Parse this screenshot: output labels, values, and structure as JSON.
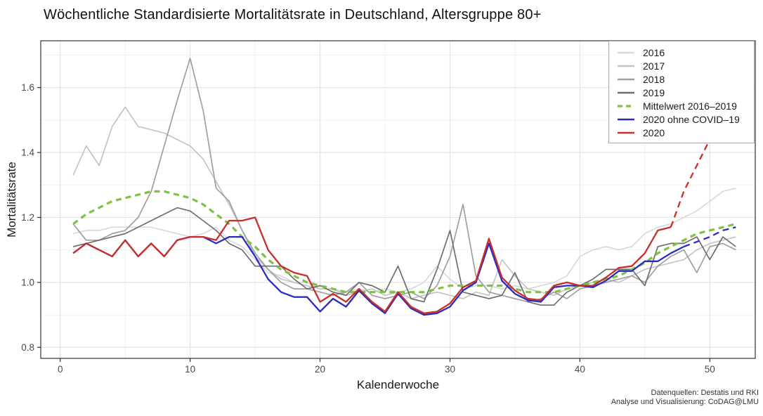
{
  "title": "Wöchentliche Standardisierte Mortalitätsrate in Deutschland, Altersgruppe 80+",
  "footer": {
    "line1": "Datenquellen: Destatis und RKI",
    "line2": "Analyse und Visualisierung: CoDAG@LMU"
  },
  "chart_data": {
    "type": "line",
    "title": "Wöchentliche Standardisierte Mortalitätsrate in Deutschland, Altersgruppe 80+",
    "xlabel": "Kalenderwoche",
    "ylabel": "Mortalitätsrate",
    "xlim": [
      -1.5,
      53.5
    ],
    "ylim": [
      0.766,
      1.744
    ],
    "grid": "on",
    "legend_position": "top-right",
    "x_ticks": [
      0,
      10,
      20,
      30,
      40,
      50
    ],
    "x_minor": [
      5,
      15,
      25,
      35,
      45
    ],
    "y_ticks": [
      0.8,
      1.0,
      1.2,
      1.4,
      1.6
    ],
    "y_tick_labels": [
      "0.8",
      "1.0",
      "1.2",
      "1.4",
      "1.6"
    ],
    "y_minor": [
      0.9,
      1.1,
      1.3,
      1.5,
      1.7
    ],
    "colors": {
      "grid_major": "#e3e3e3",
      "grid_minor": "#f1f1f1",
      "panel_border": "#333333",
      "tick": "#333333",
      "tick_label": "#4a4a4a"
    },
    "weeks": [
      1,
      2,
      3,
      4,
      5,
      6,
      7,
      8,
      9,
      10,
      11,
      12,
      13,
      14,
      15,
      16,
      17,
      18,
      19,
      20,
      21,
      22,
      23,
      24,
      25,
      26,
      27,
      28,
      29,
      30,
      31,
      32,
      33,
      34,
      35,
      36,
      37,
      38,
      39,
      40,
      41,
      42,
      43,
      44,
      45,
      46,
      47,
      48,
      49,
      50,
      51,
      52
    ],
    "series": [
      {
        "name": "2016",
        "color": "#d9d9d9",
        "width": 1.7,
        "values": [
          1.15,
          1.16,
          1.16,
          1.17,
          1.17,
          1.17,
          1.17,
          1.16,
          1.15,
          1.14,
          1.15,
          1.17,
          1.13,
          1.11,
          1.07,
          1.03,
          1.02,
          1.0,
          1.0,
          0.98,
          0.98,
          0.97,
          0.98,
          0.97,
          0.98,
          0.97,
          0.98,
          1.0,
          1.05,
          1.01,
          0.98,
          0.99,
          0.99,
          0.98,
          0.99,
          0.98,
          0.99,
          1.0,
          1.02,
          1.08,
          1.1,
          1.11,
          1.1,
          1.11,
          1.15,
          1.17,
          1.18,
          1.2,
          1.22,
          1.25,
          1.28,
          1.29
        ]
      },
      {
        "name": "2017",
        "color": "#c4c4c4",
        "width": 1.7,
        "values": [
          1.33,
          1.42,
          1.36,
          1.48,
          1.54,
          1.48,
          1.47,
          1.46,
          1.44,
          1.42,
          1.38,
          1.31,
          1.24,
          1.16,
          1.08,
          1.04,
          1.01,
          1.0,
          0.99,
          0.98,
          0.98,
          0.96,
          0.97,
          0.98,
          0.96,
          0.97,
          0.95,
          0.96,
          0.97,
          0.96,
          0.95,
          0.97,
          0.96,
          1.07,
          1.02,
          0.98,
          0.97,
          0.96,
          0.98,
          0.99,
          1.0,
          1.01,
          1.0,
          1.02,
          1.04,
          1.05,
          1.06,
          1.07,
          1.1,
          1.12,
          1.13,
          1.14
        ]
      },
      {
        "name": "2018",
        "color": "#a0a0a0",
        "width": 1.7,
        "values": [
          1.18,
          1.13,
          1.13,
          1.15,
          1.16,
          1.2,
          1.28,
          1.42,
          1.56,
          1.69,
          1.53,
          1.29,
          1.25,
          1.16,
          1.09,
          1.04,
          1.0,
          0.98,
          0.98,
          0.97,
          0.96,
          0.97,
          1.0,
          0.96,
          0.95,
          0.96,
          0.97,
          0.95,
          0.99,
          1.08,
          1.24,
          1.02,
          0.97,
          0.96,
          0.95,
          0.94,
          0.95,
          0.97,
          0.95,
          0.98,
          0.99,
          1.0,
          1.01,
          1.02,
          1.0,
          1.05,
          1.08,
          1.1,
          1.03,
          1.11,
          1.12,
          1.1
        ]
      },
      {
        "name": "2019",
        "color": "#6e6e6e",
        "width": 1.7,
        "values": [
          1.11,
          1.12,
          1.13,
          1.14,
          1.15,
          1.17,
          1.19,
          1.21,
          1.23,
          1.22,
          1.19,
          1.16,
          1.12,
          1.1,
          1.05,
          1.05,
          1.05,
          1.01,
          0.98,
          0.99,
          0.97,
          0.96,
          1.0,
          0.99,
          0.97,
          1.05,
          0.95,
          0.94,
          1.04,
          1.16,
          0.97,
          0.96,
          0.95,
          0.96,
          1.03,
          0.94,
          0.93,
          0.93,
          0.97,
          0.99,
          1.01,
          1.04,
          1.04,
          1.04,
          0.99,
          1.11,
          1.12,
          1.12,
          1.14,
          1.07,
          1.14,
          1.11
        ]
      },
      {
        "name": "Mittelwert 2016–2019",
        "color": "#7dc242",
        "width": 3.2,
        "dash": "8 6",
        "values": [
          1.18,
          1.21,
          1.23,
          1.25,
          1.26,
          1.27,
          1.28,
          1.28,
          1.27,
          1.26,
          1.24,
          1.21,
          1.18,
          1.14,
          1.11,
          1.07,
          1.04,
          1.02,
          1.0,
          0.99,
          0.98,
          0.97,
          0.97,
          0.97,
          0.97,
          0.97,
          0.97,
          0.97,
          0.98,
          0.99,
          0.99,
          0.99,
          0.99,
          0.99,
          0.98,
          0.97,
          0.97,
          0.97,
          0.98,
          0.99,
          1.0,
          1.01,
          1.02,
          1.04,
          1.06,
          1.09,
          1.11,
          1.13,
          1.15,
          1.16,
          1.17,
          1.18
        ]
      },
      {
        "name": "2020 ohne COVID–19",
        "color": "#2b2bc4",
        "width": 2.3,
        "dash_from_week": 48,
        "values": [
          1.09,
          1.12,
          1.1,
          1.08,
          1.13,
          1.08,
          1.12,
          1.08,
          1.13,
          1.14,
          1.14,
          1.12,
          1.14,
          1.14,
          1.08,
          1.01,
          0.97,
          0.955,
          0.955,
          0.91,
          0.95,
          0.925,
          0.975,
          0.935,
          0.905,
          0.965,
          0.92,
          0.9,
          0.905,
          0.925,
          0.975,
          1.0,
          1.12,
          1.005,
          0.965,
          0.945,
          0.94,
          0.985,
          0.99,
          0.99,
          0.985,
          1.005,
          1.035,
          1.035,
          1.065,
          1.065,
          1.09,
          1.11,
          1.125,
          1.14,
          1.16,
          1.17
        ]
      },
      {
        "name": "2020",
        "color": "#c62f2a",
        "width": 2.3,
        "dash_from_week": 47,
        "values": [
          1.09,
          1.12,
          1.1,
          1.08,
          1.13,
          1.08,
          1.12,
          1.08,
          1.13,
          1.14,
          1.14,
          1.13,
          1.19,
          1.19,
          1.2,
          1.1,
          1.05,
          1.03,
          1.02,
          0.94,
          0.965,
          0.94,
          0.98,
          0.94,
          0.91,
          0.97,
          0.925,
          0.905,
          0.91,
          0.935,
          0.985,
          1.005,
          1.135,
          1.015,
          0.975,
          0.95,
          0.945,
          0.99,
          1.0,
          0.99,
          0.99,
          1.015,
          1.045,
          1.05,
          1.09,
          1.16,
          1.17,
          1.28,
          1.36,
          1.44,
          1.46,
          1.44
        ]
      }
    ]
  }
}
